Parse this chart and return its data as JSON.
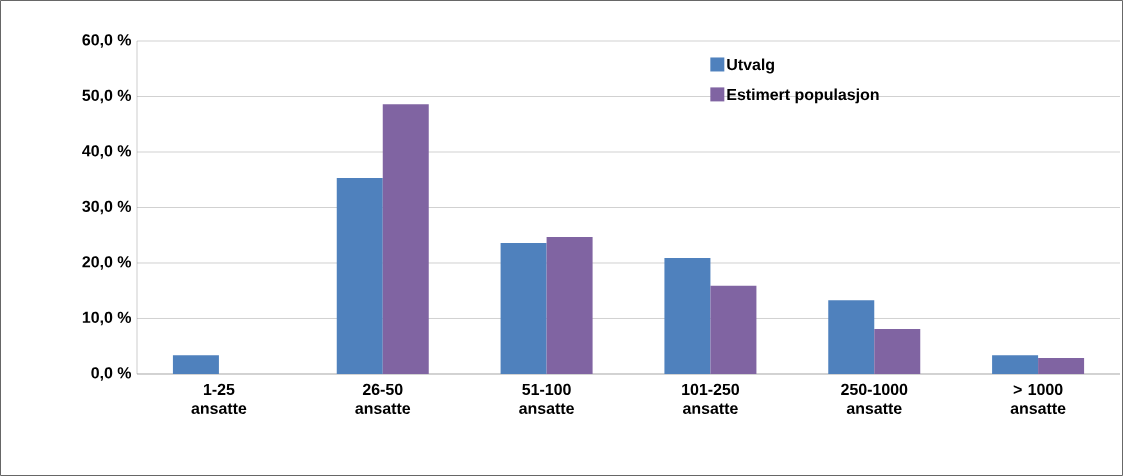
{
  "chart_data": {
    "type": "bar",
    "categories": [
      "1-25 ansatte",
      "26-50 ansatte",
      "51-100 ansatte",
      "101-250 ansatte",
      "250-1000 ansatte",
      "> 1000 ansatte"
    ],
    "series": [
      {
        "name": "Utvalg",
        "color": "#4f81bd",
        "values": [
          3.4,
          35.3,
          23.6,
          20.9,
          13.3,
          3.4
        ]
      },
      {
        "name": "Estimert populasjon",
        "color": "#8064a2",
        "values": [
          0,
          48.6,
          24.7,
          15.9,
          8.1,
          2.9
        ]
      }
    ],
    "ylim": [
      0,
      60
    ],
    "yticks": [
      {
        "value": 0,
        "label": "0,0 %"
      },
      {
        "value": 10,
        "label": "10,0 %"
      },
      {
        "value": 20,
        "label": "20,0 %"
      },
      {
        "value": 30,
        "label": "30,0 %"
      },
      {
        "value": 40,
        "label": "40,0 %"
      },
      {
        "value": 50,
        "label": "50,0 %"
      },
      {
        "value": 60,
        "label": "60,0 %"
      }
    ],
    "grid": "y",
    "legend": "top right"
  }
}
